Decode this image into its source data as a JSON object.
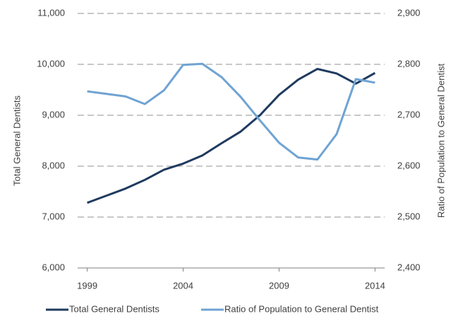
{
  "chart_data": {
    "type": "line",
    "x": [
      1999,
      2000,
      2001,
      2002,
      2003,
      2004,
      2005,
      2006,
      2007,
      2008,
      2009,
      2010,
      2011,
      2012,
      2013,
      2014
    ],
    "series": [
      {
        "name": "Total General Dentists",
        "color": "#1f3a5f",
        "values": [
          7280,
          7420,
          7560,
          7730,
          7930,
          8050,
          8210,
          8450,
          8680,
          9000,
          9400,
          9700,
          9910,
          9820,
          9620,
          9830
        ]
      },
      {
        "name": "Ratio of Population to General Dentist",
        "color": "#6fa3d3",
        "axis": "y2",
        "values": [
          2747,
          2742,
          2737,
          2722,
          2749,
          2799,
          2801,
          2775,
          2736,
          2690,
          2646,
          2617,
          2613,
          2663,
          2771,
          2764
        ]
      }
    ],
    "xlim": [
      1998.5,
      2014.5
    ],
    "xticks": [
      1999,
      2004,
      2009,
      2014
    ],
    "ylim": [
      6000,
      11000
    ],
    "yticks": [
      {
        "value": 6000,
        "label": "6,000"
      },
      {
        "value": 7000,
        "label": "7,000"
      },
      {
        "value": 8000,
        "label": "8,000"
      },
      {
        "value": 9000,
        "label": "9,000"
      },
      {
        "value": 10000,
        "label": "10,000"
      },
      {
        "value": 11000,
        "label": "11,000"
      }
    ],
    "y2lim": [
      2400,
      2900
    ],
    "y2ticks": [
      {
        "value": 2400,
        "label": "2,400"
      },
      {
        "value": 2500,
        "label": "2,500"
      },
      {
        "value": 2600,
        "label": "2,600"
      },
      {
        "value": 2700,
        "label": "2,700"
      },
      {
        "value": 2800,
        "label": "2,800"
      },
      {
        "value": 2900,
        "label": "2,900"
      }
    ],
    "ylabel": "Total General Dentists",
    "y2label": "Ratio of Population to General Dentist",
    "grid": true,
    "legend": "bottom"
  }
}
